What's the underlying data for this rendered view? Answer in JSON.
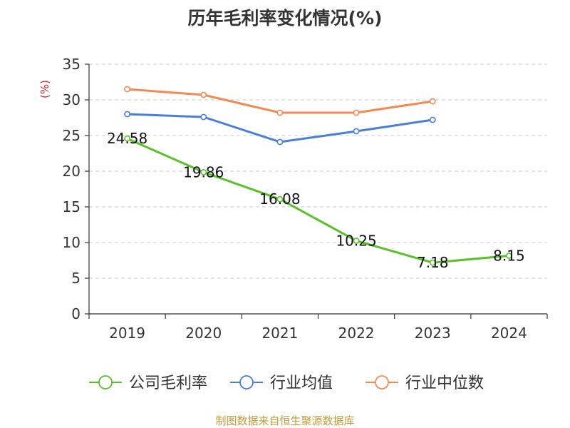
{
  "chart_data": {
    "type": "line",
    "title": "历年毛利率变化情况(%)",
    "ylabel": "(%)",
    "xlabel": "",
    "categories": [
      "2019",
      "2020",
      "2021",
      "2022",
      "2023",
      "2024"
    ],
    "ylim": [
      0,
      35
    ],
    "yticks": [
      0,
      5,
      10,
      15,
      20,
      25,
      30,
      35
    ],
    "grid": true,
    "legend_position": "bottom",
    "series": [
      {
        "name": "公司毛利率",
        "color": "#5ac12a",
        "values": [
          24.58,
          19.86,
          16.08,
          10.25,
          7.18,
          8.15
        ],
        "labels": [
          "24.58",
          "19.86",
          "16.08",
          "10.25",
          "7.18",
          "8.15"
        ]
      },
      {
        "name": "行业均值",
        "color": "#4a7fd6",
        "values": [
          28.0,
          27.6,
          24.1,
          25.6,
          27.2,
          null
        ]
      },
      {
        "name": "行业中位数",
        "color": "#f28a54",
        "values": [
          31.5,
          30.7,
          28.2,
          28.2,
          29.8,
          null
        ]
      }
    ]
  },
  "footer": {
    "source": "制图数据来自恒生聚源数据库"
  }
}
